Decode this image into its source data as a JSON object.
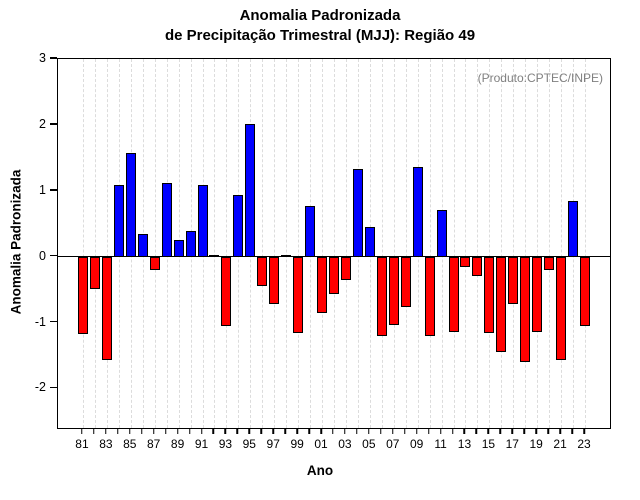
{
  "title": {
    "line1": "Anomalia Padronizada",
    "line2": "de Precipitação Trimestral (MJJ): Região 49"
  },
  "annotation": {
    "text": "(Produto:CPTEC/INPE)",
    "color": "#808080"
  },
  "axes": {
    "y_label": "Anomalia Padronizada",
    "x_label": "Ano",
    "y_ticks": [
      3,
      2,
      1,
      0,
      -1,
      -2
    ]
  },
  "colors": {
    "positive": "#0000ff",
    "negative": "#ff0000",
    "bar_border": "#000000",
    "grid": "#dcdcdc",
    "axis": "#000000"
  },
  "chart_data": {
    "type": "bar",
    "title": "Anomalia Padronizada de Precipitação Trimestral (MJJ): Região 49",
    "xlabel": "Ano",
    "ylabel": "Anomalia Padronizada",
    "ylim": [
      -2.6,
      3
    ],
    "grid": "vertical-dashed",
    "legend": "none",
    "categories": [
      1981,
      1982,
      1983,
      1984,
      1985,
      1986,
      1987,
      1988,
      1989,
      1990,
      1991,
      1992,
      1993,
      1994,
      1995,
      1996,
      1997,
      1998,
      1999,
      2000,
      2001,
      2002,
      2003,
      2004,
      2005,
      2006,
      2007,
      2008,
      2009,
      2010,
      2011,
      2012,
      2013,
      2014,
      2015,
      2016,
      2017,
      2018,
      2019,
      2020,
      2021,
      2022,
      2023
    ],
    "x_tick_labels": [
      "81",
      "",
      "83",
      "",
      "85",
      "",
      "87",
      "",
      "89",
      "",
      "91",
      "",
      "93",
      "",
      "95",
      "",
      "97",
      "",
      "99",
      "",
      "01",
      "",
      "03",
      "",
      "05",
      "",
      "07",
      "",
      "09",
      "",
      "11",
      "",
      "13",
      "",
      "15",
      "",
      "17",
      "",
      "19",
      "",
      "21",
      "",
      "23"
    ],
    "values": [
      -1.17,
      -0.49,
      -1.57,
      1.09,
      1.58,
      0.35,
      -0.2,
      1.12,
      0.26,
      0.39,
      1.09,
      0.03,
      -1.05,
      0.93,
      2.02,
      -0.45,
      -0.72,
      0.02,
      -1.16,
      0.77,
      -0.86,
      -0.56,
      -0.36,
      1.33,
      0.45,
      -1.2,
      -1.04,
      -0.77,
      1.36,
      -1.21,
      0.71,
      -1.15,
      -0.16,
      -0.3,
      -1.16,
      -1.44,
      -0.72,
      -1.6,
      -1.15,
      -0.2,
      -1.57,
      0.84,
      -1.05
    ]
  }
}
